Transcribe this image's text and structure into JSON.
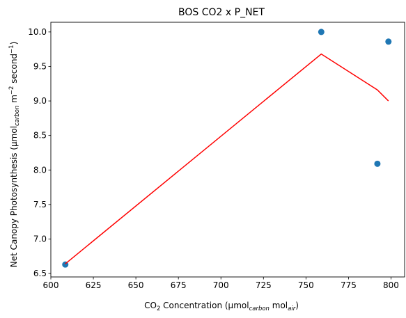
{
  "chart_data": {
    "type": "scatter",
    "title": "BOS CO2 x P_NET",
    "xlabel": {
      "base": "CO",
      "sub1": "2",
      "mid": " Concentration (µmol",
      "sub2": "carbon",
      "mid2": " mol",
      "sub3": "air",
      "end": ")"
    },
    "ylabel": {
      "base": "Net Canopy Photosynthesis (µmol",
      "sub1": "carbon",
      "mid": " m",
      "sup1": "−2",
      "mid2": " second",
      "sup2": "−1",
      "end": ")"
    },
    "xlim": [
      600,
      808
    ],
    "ylim": [
      6.45,
      10.14
    ],
    "xticks": [
      600,
      625,
      650,
      675,
      700,
      725,
      750,
      775,
      800
    ],
    "xtick_labels": [
      "600",
      "625",
      "650",
      "675",
      "700",
      "725",
      "750",
      "775",
      "800"
    ],
    "yticks": [
      6.5,
      7.0,
      7.5,
      8.0,
      8.5,
      9.0,
      9.5,
      10.0
    ],
    "ytick_labels": [
      "6.5",
      "7.0",
      "7.5",
      "8.0",
      "8.5",
      "9.0",
      "9.5",
      "10.0"
    ],
    "grid": false,
    "series": [
      {
        "kind": "scatter",
        "color": "#1f77b4",
        "points": [
          {
            "x": 608.5,
            "y": 6.63
          },
          {
            "x": 759.0,
            "y": 10.0
          },
          {
            "x": 792.0,
            "y": 8.09
          },
          {
            "x": 798.5,
            "y": 9.86
          }
        ]
      },
      {
        "kind": "line",
        "color": "#ff0000",
        "points": [
          {
            "x": 608.5,
            "y": 6.64
          },
          {
            "x": 759.0,
            "y": 9.68
          },
          {
            "x": 792.0,
            "y": 9.16
          },
          {
            "x": 798.5,
            "y": 9.0
          }
        ]
      }
    ]
  }
}
